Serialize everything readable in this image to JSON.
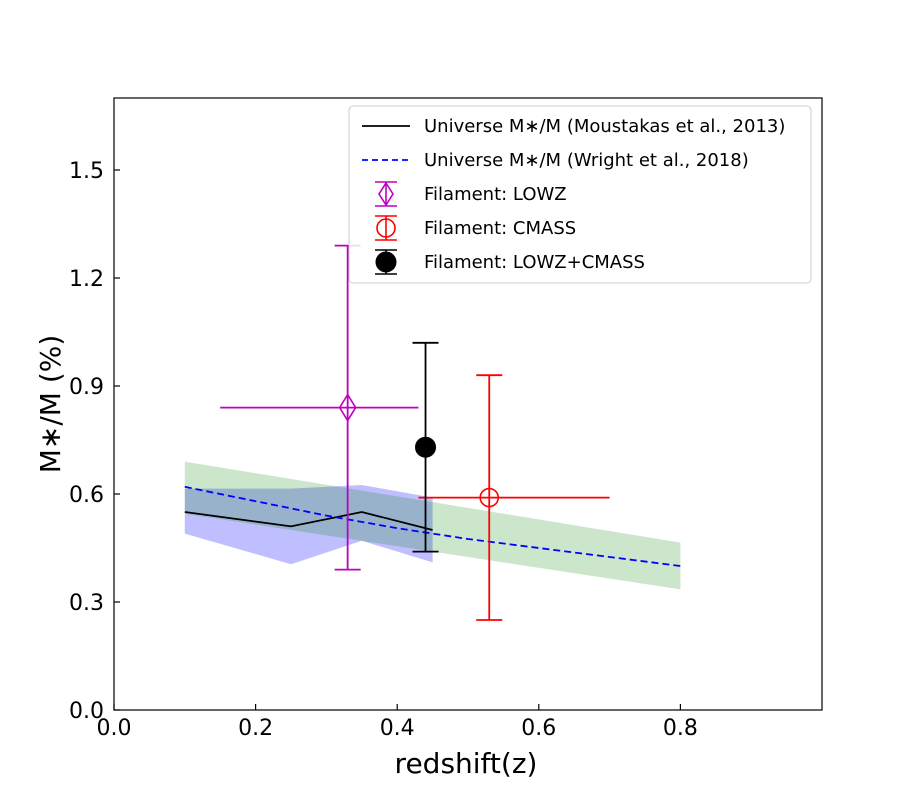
{
  "chart_data": {
    "type": "scatter",
    "xlabel": "redshift(z)",
    "ylabel": "M∗/M (%)",
    "xlim": [
      0.0,
      1.0
    ],
    "ylim": [
      0.0,
      1.7
    ],
    "xticks": [
      0.0,
      0.2,
      0.4,
      0.6,
      0.8
    ],
    "xtick_labels": [
      "0.0",
      "0.2",
      "0.4",
      "0.6",
      "0.8"
    ],
    "yticks": [
      0.0,
      0.3,
      0.6,
      0.9,
      1.2,
      1.5
    ],
    "ytick_labels": [
      "0.0",
      "0.3",
      "0.6",
      "0.9",
      "1.2",
      "1.5"
    ],
    "legend_position": "top-right",
    "series": [
      {
        "name": "Universe M∗/M (Moustakas et al., 2013)",
        "style": "solid-line",
        "color": "#000000",
        "x": [
          0.1,
          0.25,
          0.35,
          0.45
        ],
        "y": [
          0.55,
          0.51,
          0.55,
          0.5
        ],
        "band": {
          "color": "#0000ff",
          "x": [
            0.1,
            0.25,
            0.35,
            0.45
          ],
          "lower": [
            0.49,
            0.405,
            0.47,
            0.41
          ],
          "upper": [
            0.615,
            0.615,
            0.625,
            0.59
          ]
        }
      },
      {
        "name": "Universe M∗/M (Wright et al., 2018)",
        "style": "dashed-line",
        "color": "#0000ff",
        "x": [
          0.1,
          0.2,
          0.3,
          0.4,
          0.5,
          0.6,
          0.7,
          0.8
        ],
        "y": [
          0.62,
          0.58,
          0.54,
          0.505,
          0.475,
          0.45,
          0.425,
          0.4
        ],
        "band": {
          "color": "#008000",
          "x": [
            0.1,
            0.8
          ],
          "lower": [
            0.545,
            0.335
          ],
          "upper": [
            0.69,
            0.465
          ]
        }
      },
      {
        "name": "Filament: LOWZ",
        "style": "marker",
        "marker": "diamond-open",
        "color": "#bf00bf",
        "x": 0.33,
        "y": 0.84,
        "xerr": [
          0.18,
          0.1
        ],
        "yerr": [
          0.45,
          0.45
        ]
      },
      {
        "name": "Filament: CMASS",
        "style": "marker",
        "marker": "circle-open",
        "color": "#ff0000",
        "x": 0.53,
        "y": 0.59,
        "xerr": [
          0.1,
          0.17
        ],
        "yerr": [
          0.34,
          0.34
        ]
      },
      {
        "name": "Filament: LOWZ+CMASS",
        "style": "marker",
        "marker": "circle-filled",
        "color": "#000000",
        "x": 0.44,
        "y": 0.73,
        "xerr": [
          0,
          0
        ],
        "yerr": [
          0.29,
          0.29
        ]
      }
    ]
  }
}
